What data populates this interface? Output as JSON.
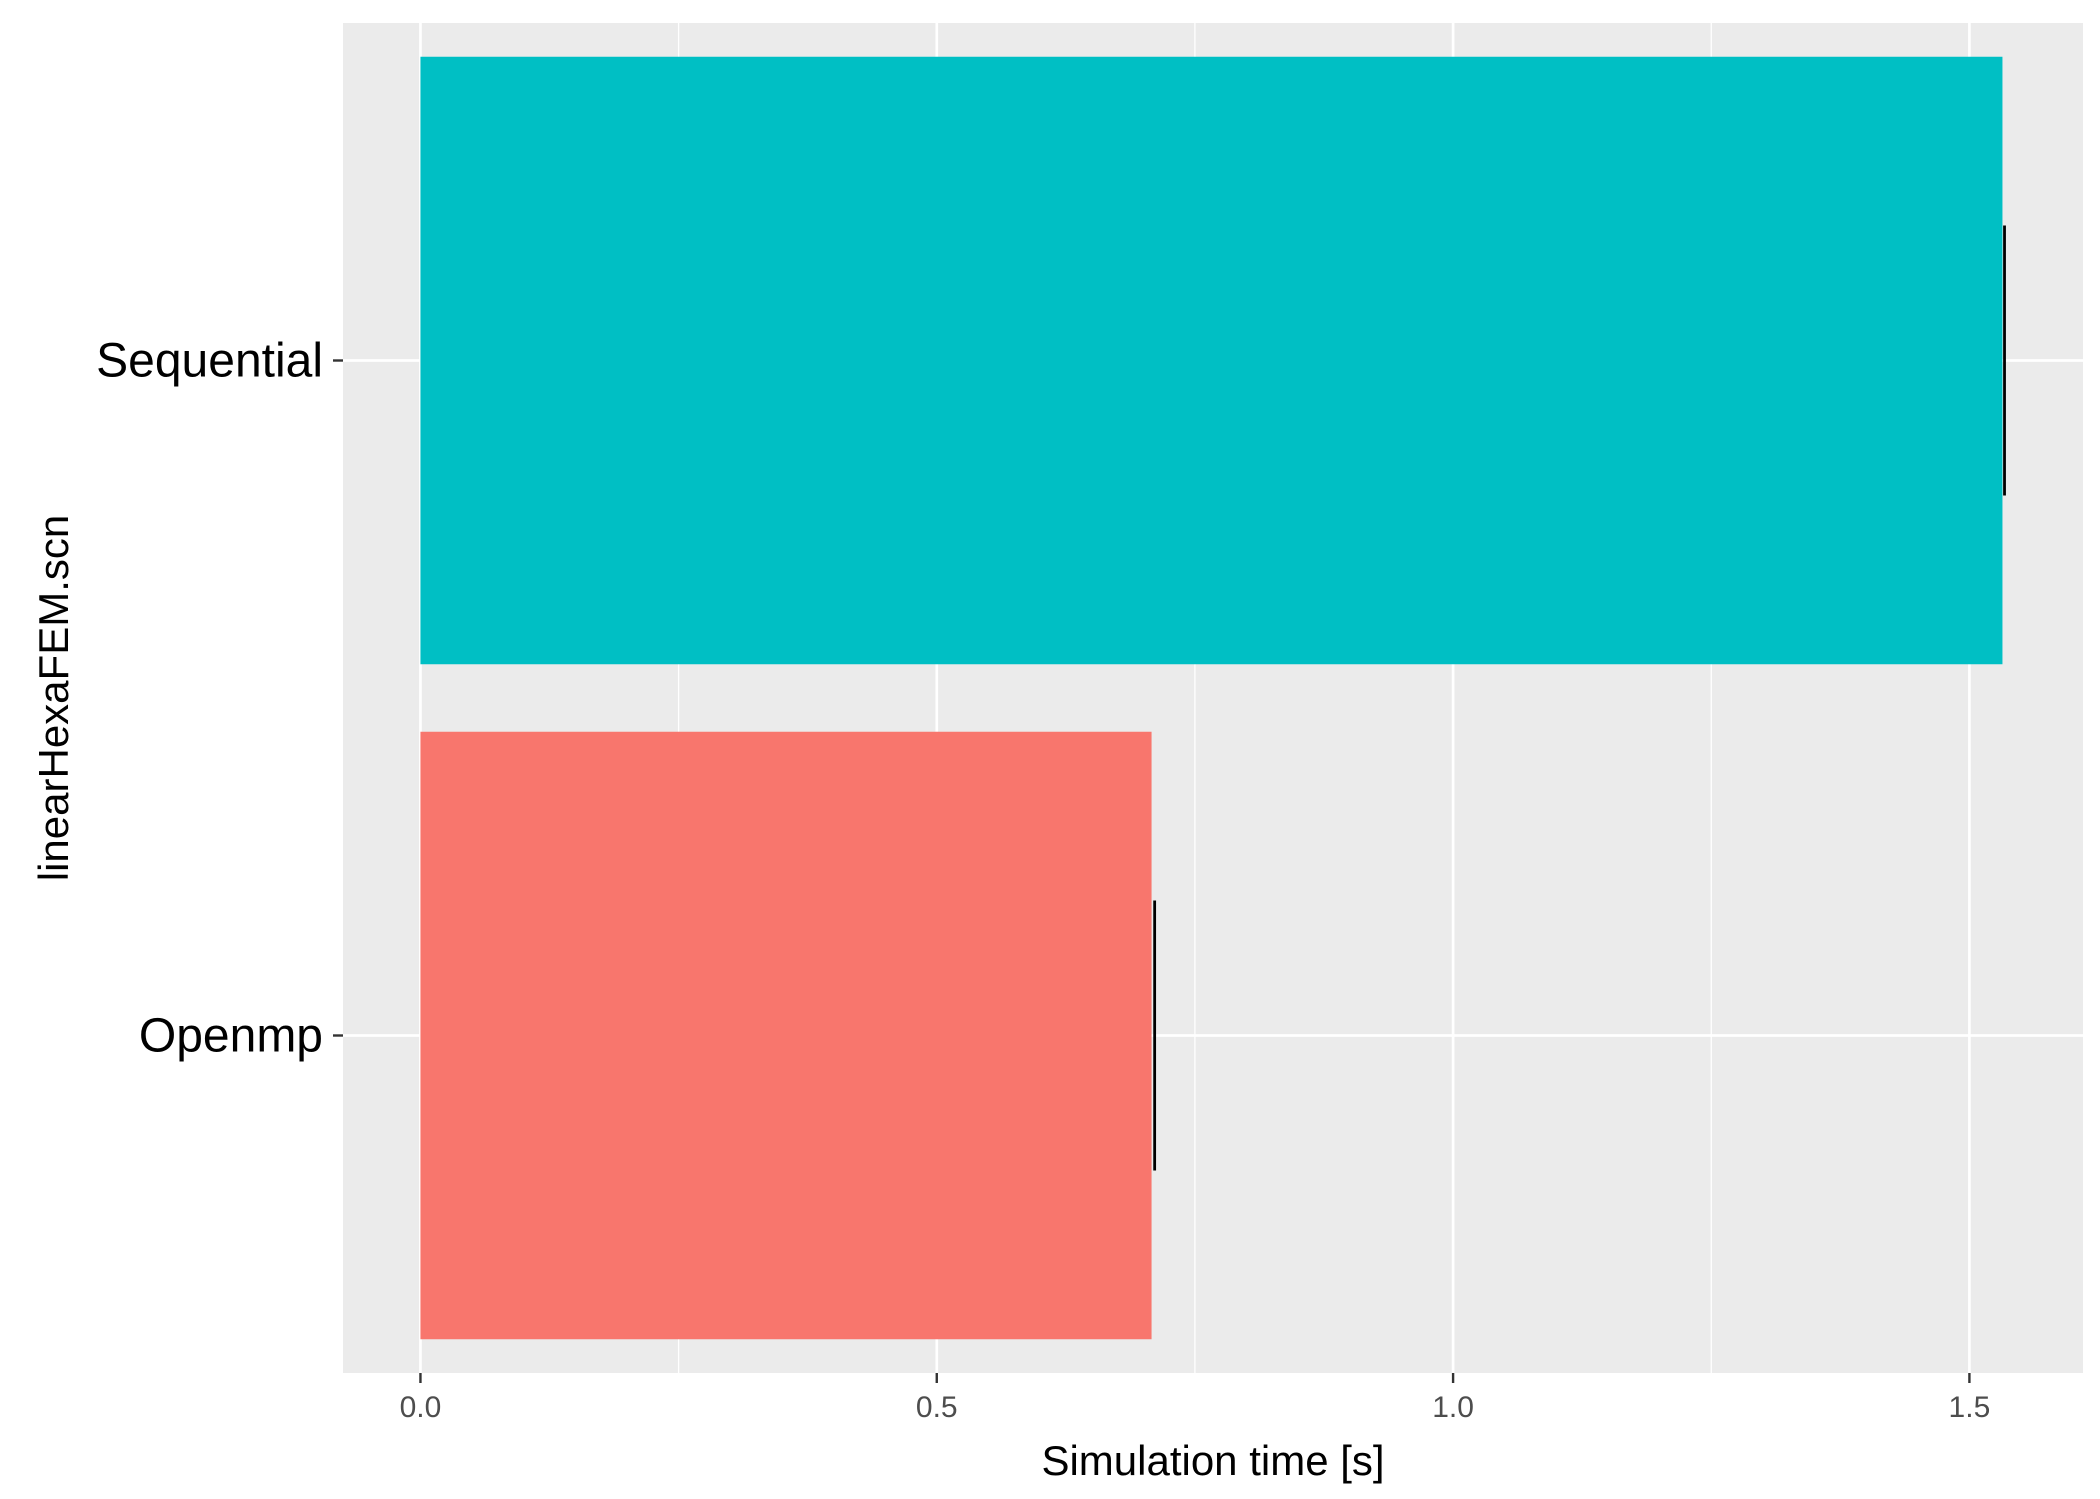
{
  "chart_data": {
    "type": "bar",
    "orientation": "horizontal",
    "categories": [
      "Sequential",
      "Openmp"
    ],
    "values": [
      1.532,
      0.708
    ],
    "error_high": [
      1.534,
      0.711
    ],
    "colors": [
      "#00BFC4",
      "#F8766D"
    ],
    "xlabel": "Simulation time [s]",
    "ylabel": "linearHexaFEM.scn",
    "xlim": [
      -0.075,
      1.61
    ],
    "xticks": [
      0.0,
      0.5,
      1.0,
      1.5
    ],
    "xtick_labels": [
      "0.0",
      "0.5",
      "1.0",
      "1.5"
    ],
    "panel_background": "#EBEBEB",
    "grid": true,
    "legend": "none"
  }
}
